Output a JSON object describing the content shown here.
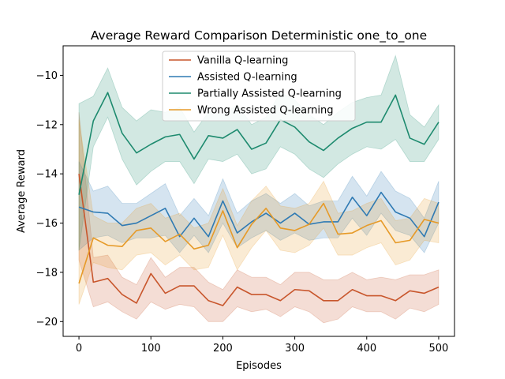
{
  "chart_data": {
    "type": "line",
    "title": "Average Reward Comparison Deterministic one_to_one",
    "xlabel": "Episodes",
    "ylabel": "Average Reward",
    "xlim": [
      -22,
      522
    ],
    "ylim": [
      -20.6,
      -8.8
    ],
    "xticks": [
      0,
      100,
      200,
      300,
      400,
      500
    ],
    "yticks": [
      -20,
      -18,
      -16,
      -14,
      -12,
      -10
    ],
    "grid": false,
    "legend_position": "top-center",
    "x": [
      0,
      20,
      40,
      60,
      80,
      100,
      120,
      140,
      160,
      180,
      200,
      220,
      240,
      260,
      280,
      300,
      320,
      340,
      360,
      380,
      400,
      420,
      440,
      460,
      480,
      500
    ],
    "series": [
      {
        "name": "Vanilla Q-learning",
        "color": "#c8562c",
        "values": [
          -14.0,
          -18.4,
          -18.25,
          -18.9,
          -19.25,
          -18.05,
          -18.85,
          -18.55,
          -18.55,
          -19.15,
          -19.35,
          -18.6,
          -18.9,
          -18.9,
          -19.15,
          -18.7,
          -18.75,
          -19.15,
          -19.15,
          -18.7,
          -18.95,
          -18.95,
          -19.15,
          -18.75,
          -18.85,
          -18.6
        ],
        "lower": [
          -17.5,
          -19.4,
          -19.2,
          -19.6,
          -19.9,
          -19.2,
          -19.5,
          -19.3,
          -19.4,
          -20.0,
          -20.0,
          -19.4,
          -19.6,
          -19.5,
          -19.8,
          -19.4,
          -19.6,
          -20.05,
          -19.9,
          -19.4,
          -19.6,
          -19.6,
          -19.9,
          -19.45,
          -19.6,
          -19.3
        ],
        "upper": [
          -11.5,
          -17.4,
          -17.3,
          -18.2,
          -18.5,
          -17.4,
          -18.2,
          -17.8,
          -17.8,
          -18.4,
          -18.7,
          -17.9,
          -18.2,
          -18.2,
          -18.5,
          -18.0,
          -18.0,
          -18.3,
          -18.3,
          -18.0,
          -18.3,
          -18.2,
          -18.3,
          -18.1,
          -18.1,
          -17.9
        ]
      },
      {
        "name": "Assisted Q-learning",
        "color": "#2f7ab3",
        "values": [
          -15.35,
          -15.55,
          -15.6,
          -16.1,
          -16.0,
          -15.7,
          -15.4,
          -16.55,
          -15.8,
          -16.55,
          -15.1,
          -16.4,
          -15.95,
          -15.6,
          -16.0,
          -15.6,
          -16.05,
          -15.95,
          -15.95,
          -14.95,
          -15.7,
          -14.75,
          -15.55,
          -15.8,
          -16.55,
          -15.15
        ],
        "lower": [
          -17.1,
          -16.6,
          -16.5,
          -16.8,
          -16.6,
          -16.6,
          -16.5,
          -17.2,
          -16.5,
          -17.2,
          -16.0,
          -17.0,
          -16.6,
          -16.3,
          -16.7,
          -16.4,
          -16.7,
          -16.6,
          -16.6,
          -15.8,
          -16.5,
          -15.6,
          -16.3,
          -16.5,
          -17.2,
          -16.0
        ],
        "upper": [
          -13.5,
          -14.7,
          -14.5,
          -15.2,
          -15.2,
          -14.8,
          -14.4,
          -15.7,
          -15.0,
          -15.7,
          -14.2,
          -15.6,
          -15.1,
          -14.8,
          -15.2,
          -14.8,
          -15.3,
          -15.1,
          -15.1,
          -14.1,
          -14.9,
          -13.9,
          -14.7,
          -15.0,
          -15.8,
          -14.3
        ]
      },
      {
        "name": "Partially Assisted Q-learning",
        "color": "#1d8a6e",
        "values": [
          -14.85,
          -11.85,
          -10.7,
          -12.35,
          -13.15,
          -12.8,
          -12.5,
          -12.4,
          -13.4,
          -12.45,
          -12.55,
          -12.2,
          -13.0,
          -12.75,
          -11.8,
          -12.1,
          -12.7,
          -13.05,
          -12.55,
          -12.15,
          -11.9,
          -11.9,
          -10.8,
          -12.55,
          -12.8,
          -11.9
        ],
        "lower": [
          -17.1,
          -12.9,
          -11.7,
          -13.4,
          -14.45,
          -13.9,
          -13.5,
          -13.5,
          -14.4,
          -13.4,
          -13.5,
          -13.2,
          -14.0,
          -13.8,
          -12.9,
          -13.2,
          -13.8,
          -14.15,
          -13.6,
          -13.2,
          -12.9,
          -13.0,
          -12.6,
          -13.5,
          -13.5,
          -12.6
        ],
        "upper": [
          -11.15,
          -10.85,
          -9.7,
          -11.3,
          -11.85,
          -11.4,
          -11.5,
          -11.3,
          -12.3,
          -11.5,
          -11.6,
          -11.2,
          -12.0,
          -11.7,
          -10.7,
          -11.0,
          -11.6,
          -12.0,
          -11.5,
          -11.1,
          -10.9,
          -10.8,
          -9.2,
          -11.6,
          -12.1,
          -11.2
        ]
      },
      {
        "name": "Wrong Assisted Q-learning",
        "color": "#e69a28",
        "values": [
          -18.45,
          -16.6,
          -16.9,
          -16.95,
          -16.3,
          -16.2,
          -16.75,
          -16.45,
          -17.05,
          -16.9,
          -15.5,
          -17.0,
          -16.05,
          -15.4,
          -16.2,
          -16.3,
          -16.05,
          -15.2,
          -16.45,
          -16.4,
          -16.1,
          -15.9,
          -16.8,
          -16.7,
          -15.85,
          -16.0
        ],
        "lower": [
          -19.3,
          -17.6,
          -17.8,
          -17.9,
          -17.3,
          -17.2,
          -17.7,
          -17.3,
          -17.9,
          -17.8,
          -16.5,
          -17.9,
          -17.0,
          -16.3,
          -17.1,
          -17.2,
          -16.9,
          -16.2,
          -17.3,
          -17.3,
          -17.0,
          -16.8,
          -17.7,
          -17.5,
          -16.7,
          -16.8
        ],
        "upper": [
          -11.8,
          -15.7,
          -16.0,
          -16.0,
          -15.4,
          -15.2,
          -15.8,
          -15.6,
          -16.2,
          -16.0,
          -14.6,
          -16.1,
          -15.1,
          -14.5,
          -15.3,
          -15.4,
          -15.2,
          -14.3,
          -15.6,
          -15.5,
          -15.2,
          -15.0,
          -15.9,
          -15.8,
          -15.0,
          -15.2
        ]
      }
    ]
  }
}
